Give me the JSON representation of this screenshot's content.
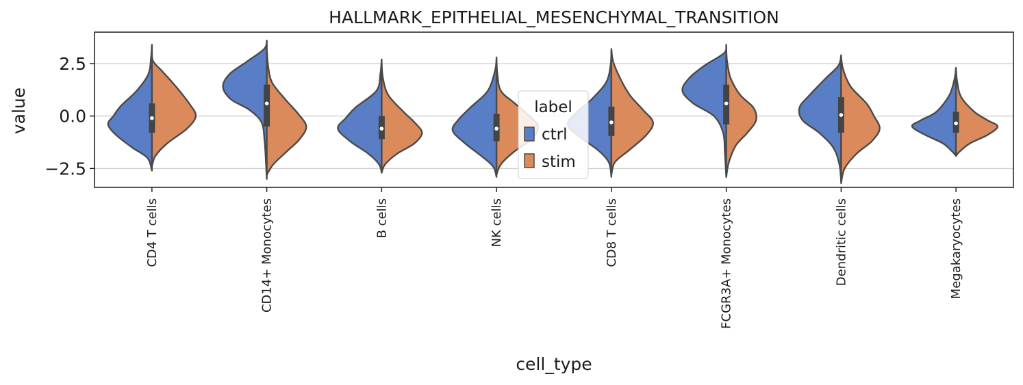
{
  "chart_data": {
    "type": "violin",
    "title": "HALLMARK_EPITHELIAL_MESENCHYMAL_TRANSITION",
    "xlabel": "cell_type",
    "ylabel": "value",
    "ylim": [
      -3.4,
      4.0
    ],
    "yticks": [
      -2.5,
      0.0,
      2.5
    ],
    "ytick_labels": [
      "−2.5",
      "0.0",
      "2.5"
    ],
    "grid": "horizontal",
    "split": true,
    "categories": [
      "CD4 T cells",
      "CD14+ Monocytes",
      "B cells",
      "NK cells",
      "CD8 T cells",
      "FCGR3A+ Monocytes",
      "Dendritic cells",
      "Megakaryocytes"
    ],
    "legend": {
      "title": "label",
      "placement": "center",
      "entries": [
        "ctrl",
        "stim"
      ]
    },
    "series": [
      {
        "name": "ctrl",
        "color": "#5a7ec6",
        "profiles": [
          [
            [
              3.4,
              0.0
            ],
            [
              2.8,
              0.02
            ],
            [
              2.0,
              0.08
            ],
            [
              1.2,
              0.35
            ],
            [
              0.5,
              0.7
            ],
            [
              0.0,
              0.88
            ],
            [
              -0.4,
              1.0
            ],
            [
              -0.9,
              0.82
            ],
            [
              -1.5,
              0.45
            ],
            [
              -2.0,
              0.1
            ],
            [
              -2.6,
              0.0
            ]
          ],
          [
            [
              3.6,
              0.0
            ],
            [
              3.2,
              0.06
            ],
            [
              2.6,
              0.45
            ],
            [
              2.0,
              0.85
            ],
            [
              1.4,
              1.0
            ],
            [
              0.8,
              0.82
            ],
            [
              0.3,
              0.4
            ],
            [
              -0.3,
              0.12
            ],
            [
              -1.2,
              0.05
            ],
            [
              -2.2,
              0.02
            ],
            [
              -3.0,
              0.0
            ]
          ],
          [
            [
              2.7,
              0.0
            ],
            [
              2.0,
              0.03
            ],
            [
              1.2,
              0.12
            ],
            [
              0.4,
              0.6
            ],
            [
              -0.1,
              0.82
            ],
            [
              -0.6,
              1.0
            ],
            [
              -1.2,
              0.72
            ],
            [
              -1.8,
              0.3
            ],
            [
              -2.3,
              0.06
            ],
            [
              -2.7,
              0.0
            ]
          ],
          [
            [
              2.8,
              0.0
            ],
            [
              2.2,
              0.03
            ],
            [
              1.2,
              0.2
            ],
            [
              0.4,
              0.6
            ],
            [
              -0.2,
              0.88
            ],
            [
              -0.7,
              1.0
            ],
            [
              -1.3,
              0.72
            ],
            [
              -1.9,
              0.35
            ],
            [
              -2.4,
              0.08
            ],
            [
              -2.9,
              0.0
            ]
          ],
          [
            [
              3.1,
              0.0
            ],
            [
              2.4,
              0.02
            ],
            [
              1.6,
              0.12
            ],
            [
              0.8,
              0.45
            ],
            [
              0.2,
              0.78
            ],
            [
              -0.4,
              1.0
            ],
            [
              -1.0,
              0.72
            ],
            [
              -1.6,
              0.32
            ],
            [
              -2.2,
              0.06
            ],
            [
              -2.9,
              0.0
            ]
          ],
          [
            [
              3.4,
              0.0
            ],
            [
              3.0,
              0.05
            ],
            [
              2.4,
              0.5
            ],
            [
              1.8,
              0.85
            ],
            [
              1.2,
              1.0
            ],
            [
              0.6,
              0.75
            ],
            [
              0.0,
              0.28
            ],
            [
              -0.8,
              0.07
            ],
            [
              -1.8,
              0.03
            ],
            [
              -2.9,
              0.0
            ]
          ],
          [
            [
              2.9,
              0.0
            ],
            [
              2.4,
              0.06
            ],
            [
              1.8,
              0.35
            ],
            [
              1.0,
              0.72
            ],
            [
              0.4,
              0.95
            ],
            [
              -0.2,
              0.88
            ],
            [
              -0.8,
              0.5
            ],
            [
              -1.5,
              0.18
            ],
            [
              -2.3,
              0.04
            ],
            [
              -3.1,
              0.0
            ]
          ],
          [
            [
              2.3,
              0.0
            ],
            [
              1.8,
              0.03
            ],
            [
              1.0,
              0.15
            ],
            [
              0.2,
              0.45
            ],
            [
              -0.2,
              0.8
            ],
            [
              -0.5,
              1.0
            ],
            [
              -0.9,
              0.7
            ],
            [
              -1.3,
              0.3
            ],
            [
              -1.7,
              0.08
            ],
            [
              -1.9,
              0.0
            ]
          ]
        ],
        "box": [
          {
            "q1": -0.8,
            "median": -0.1,
            "q3": 0.6
          },
          {
            "q1": -0.5,
            "median": 0.6,
            "q3": 1.5
          },
          {
            "q1": -1.1,
            "median": -0.6,
            "q3": 0.0
          },
          {
            "q1": -1.2,
            "median": -0.6,
            "q3": 0.1
          },
          {
            "q1": -0.95,
            "median": -0.3,
            "q3": 0.45
          },
          {
            "q1": -0.4,
            "median": 0.6,
            "q3": 1.5
          },
          {
            "q1": -0.8,
            "median": 0.05,
            "q3": 0.9
          },
          {
            "q1": -0.8,
            "median": -0.35,
            "q3": 0.2
          }
        ]
      },
      {
        "name": "stim",
        "color": "#db8a5c",
        "profiles": [
          [
            [
              3.0,
              0.0
            ],
            [
              2.6,
              0.03
            ],
            [
              2.1,
              0.25
            ],
            [
              1.4,
              0.55
            ],
            [
              0.6,
              0.85
            ],
            [
              0.0,
              1.0
            ],
            [
              -0.6,
              0.8
            ],
            [
              -1.3,
              0.35
            ],
            [
              -1.9,
              0.08
            ],
            [
              -2.4,
              0.0
            ]
          ],
          [
            [
              3.2,
              0.0
            ],
            [
              2.4,
              0.03
            ],
            [
              1.6,
              0.12
            ],
            [
              0.8,
              0.42
            ],
            [
              0.1,
              0.72
            ],
            [
              -0.5,
              0.9
            ],
            [
              -1.1,
              0.75
            ],
            [
              -1.7,
              0.45
            ],
            [
              -2.3,
              0.15
            ],
            [
              -2.8,
              0.0
            ]
          ],
          [
            [
              2.5,
              0.0
            ],
            [
              1.8,
              0.03
            ],
            [
              1.0,
              0.15
            ],
            [
              0.2,
              0.5
            ],
            [
              -0.3,
              0.75
            ],
            [
              -0.8,
              0.92
            ],
            [
              -1.3,
              0.75
            ],
            [
              -1.8,
              0.35
            ],
            [
              -2.3,
              0.08
            ],
            [
              -2.7,
              0.0
            ]
          ],
          [
            [
              2.7,
              0.0
            ],
            [
              2.0,
              0.02
            ],
            [
              1.2,
              0.1
            ],
            [
              0.6,
              0.42
            ],
            [
              0.0,
              0.75
            ],
            [
              -0.5,
              0.95
            ],
            [
              -1.1,
              0.8
            ],
            [
              -1.7,
              0.4
            ],
            [
              -2.3,
              0.1
            ],
            [
              -2.8,
              0.0
            ]
          ],
          [
            [
              3.2,
              0.0
            ],
            [
              2.6,
              0.04
            ],
            [
              1.8,
              0.2
            ],
            [
              1.0,
              0.42
            ],
            [
              0.3,
              0.72
            ],
            [
              -0.3,
              0.95
            ],
            [
              -0.9,
              0.8
            ],
            [
              -1.6,
              0.42
            ],
            [
              -2.2,
              0.08
            ],
            [
              -2.8,
              0.0
            ]
          ],
          [
            [
              3.2,
              0.0
            ],
            [
              2.6,
              0.02
            ],
            [
              1.8,
              0.1
            ],
            [
              1.0,
              0.32
            ],
            [
              0.4,
              0.62
            ],
            [
              -0.2,
              0.68
            ],
            [
              -0.8,
              0.48
            ],
            [
              -1.4,
              0.22
            ],
            [
              -2.2,
              0.06
            ],
            [
              -2.9,
              0.0
            ]
          ],
          [
            [
              2.8,
              0.0
            ],
            [
              2.2,
              0.05
            ],
            [
              1.4,
              0.22
            ],
            [
              0.6,
              0.58
            ],
            [
              0.0,
              0.75
            ],
            [
              -0.6,
              0.88
            ],
            [
              -1.2,
              0.7
            ],
            [
              -1.8,
              0.35
            ],
            [
              -2.5,
              0.08
            ],
            [
              -3.2,
              0.0
            ]
          ],
          [
            [
              2.2,
              0.0
            ],
            [
              1.6,
              0.03
            ],
            [
              0.9,
              0.12
            ],
            [
              0.2,
              0.42
            ],
            [
              -0.2,
              0.72
            ],
            [
              -0.5,
              0.95
            ],
            [
              -0.9,
              0.72
            ],
            [
              -1.3,
              0.32
            ],
            [
              -1.7,
              0.08
            ],
            [
              -1.9,
              0.0
            ]
          ]
        ]
      }
    ]
  }
}
